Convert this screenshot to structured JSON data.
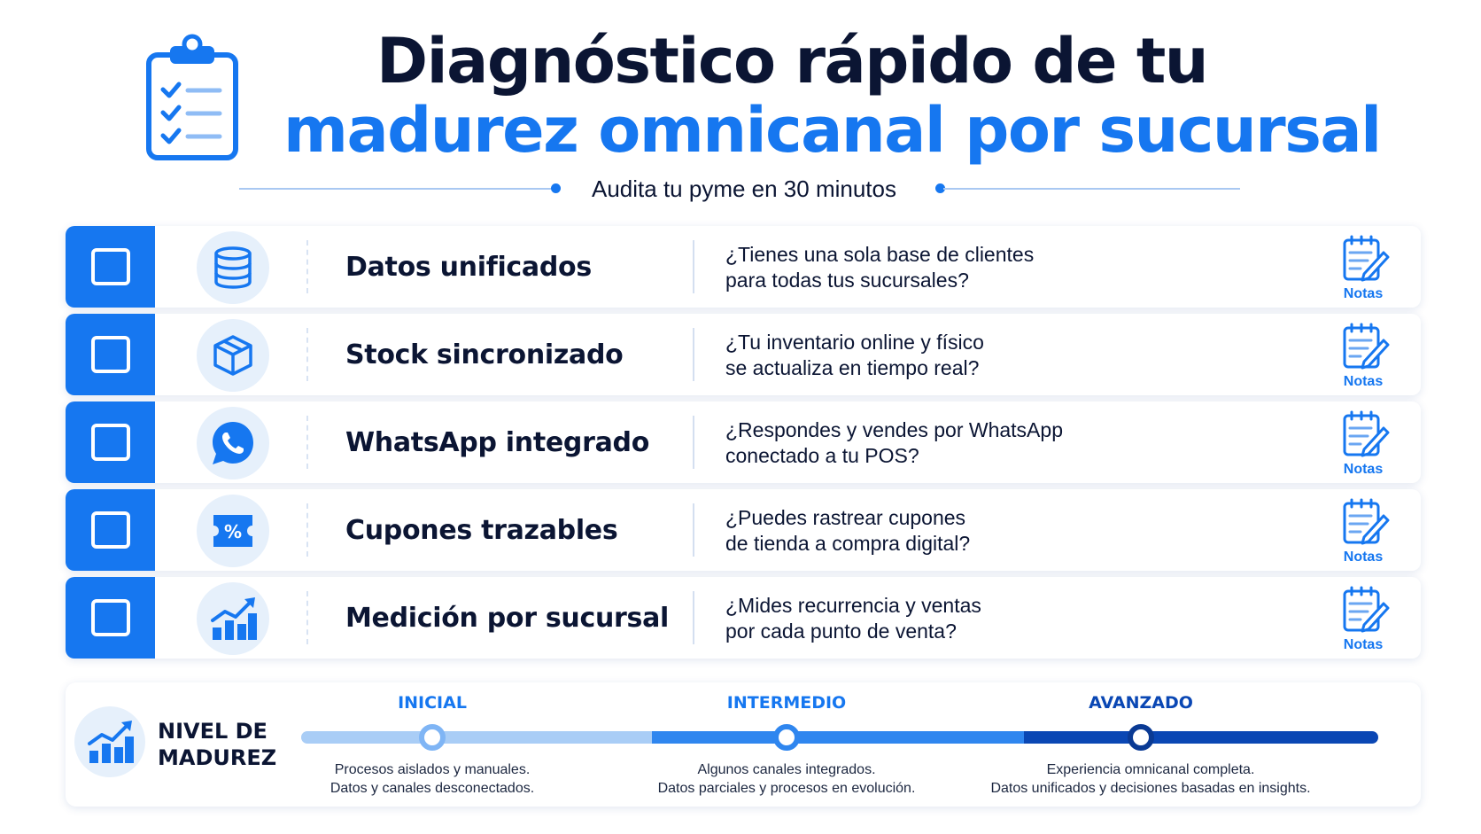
{
  "header": {
    "title_line1": "Diagnóstico rápido de tu",
    "title_line2": "madurez omnicanal por sucursal",
    "subtitle": "Audita tu pyme en 30 minutos",
    "icon": "clipboard-checklist-icon"
  },
  "colors": {
    "accent": "#1677f0",
    "dark_text": "#0b1533",
    "light_blue_bg": "#e6f0fb",
    "navy": "#0a47b4"
  },
  "checklist": [
    {
      "icon": "database-icon",
      "label": "Datos unificados",
      "question_line1": "¿Tienes una sola base de clientes",
      "question_line2": "para todas tus sucursales?",
      "notes_label": "Notas",
      "checked": false
    },
    {
      "icon": "box-icon",
      "label": "Stock sincronizado",
      "question_line1": "¿Tu inventario online y físico",
      "question_line2": "se actualiza en tiempo real?",
      "notes_label": "Notas",
      "checked": false
    },
    {
      "icon": "whatsapp-icon",
      "label": "WhatsApp integrado",
      "question_line1": "¿Respondes y vendes por WhatsApp",
      "question_line2": "conectado a tu POS?",
      "notes_label": "Notas",
      "checked": false
    },
    {
      "icon": "coupon-percent-icon",
      "label": "Cupones trazables",
      "question_line1": "¿Puedes rastrear cupones",
      "question_line2": "de tienda a compra digital?",
      "notes_label": "Notas",
      "checked": false
    },
    {
      "icon": "growth-chart-icon",
      "label": "Medición por sucursal",
      "question_line1": "¿Mides recurrencia y ventas",
      "question_line2": "por cada punto de venta?",
      "notes_label": "Notas",
      "checked": false
    }
  ],
  "maturity": {
    "title_line1": "NIVEL DE",
    "title_line2": "MADUREZ",
    "icon": "growth-chart-icon",
    "stages": [
      {
        "name": "INICIAL",
        "desc_line1": "Procesos aislados y manuales.",
        "desc_line2": "Datos y canales desconectados.",
        "color": "#1677f0"
      },
      {
        "name": "INTERMEDIO",
        "desc_line1": "Algunos canales integrados.",
        "desc_line2": "Datos parciales y procesos en evolución.",
        "color": "#1677f0"
      },
      {
        "name": "AVANZADO",
        "desc_line1": "Experiencia omnicanal completa.",
        "desc_line2": "Datos unificados y decisiones basadas en insights.",
        "color": "#0a47b4"
      }
    ]
  }
}
